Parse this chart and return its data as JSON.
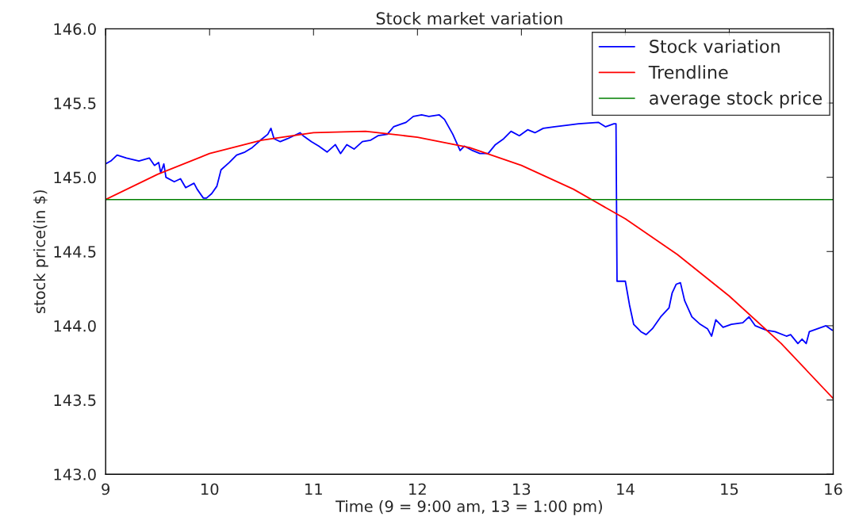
{
  "chart_data": {
    "type": "line",
    "title": "Stock market variation",
    "xlabel": "Time (9 = 9:00 am, 13 = 1:00 pm)",
    "ylabel": "stock price(in $)",
    "xlim": [
      9,
      16
    ],
    "xticks": [
      9,
      10,
      11,
      12,
      13,
      14,
      15,
      16
    ],
    "ylim": [
      143.0,
      146.0
    ],
    "yticks": [
      {
        "value": 143.0,
        "label": "143.0"
      },
      {
        "value": 143.5,
        "label": "143.5"
      },
      {
        "value": 144.0,
        "label": "144.0"
      },
      {
        "value": 144.5,
        "label": "144.5"
      },
      {
        "value": 145.0,
        "label": "145.0"
      },
      {
        "value": 145.5,
        "label": "145.5"
      },
      {
        "value": 146.0,
        "label": "146.0"
      }
    ],
    "grid": false,
    "legend": "top right",
    "series": [
      {
        "name": "Stock variation",
        "color": "#0000ff",
        "x": [
          9.0,
          9.05,
          9.11,
          9.2,
          9.32,
          9.42,
          9.47,
          9.51,
          9.53,
          9.56,
          9.58,
          9.66,
          9.72,
          9.77,
          9.85,
          9.88,
          9.94,
          9.97,
          10.02,
          10.07,
          10.11,
          10.19,
          10.26,
          10.34,
          10.41,
          10.49,
          10.56,
          10.59,
          10.62,
          10.68,
          10.75,
          10.81,
          10.87,
          10.9,
          10.98,
          11.05,
          11.13,
          11.21,
          11.26,
          11.32,
          11.39,
          11.47,
          11.55,
          11.62,
          11.71,
          11.77,
          11.89,
          11.96,
          12.04,
          12.11,
          12.21,
          12.26,
          12.34,
          12.41,
          12.45,
          12.53,
          12.6,
          12.68,
          12.75,
          12.83,
          12.9,
          12.98,
          13.06,
          13.13,
          13.21,
          13.32,
          13.43,
          13.55,
          13.74,
          13.81,
          13.89,
          13.91,
          13.92,
          13.95,
          14.0,
          14.04,
          14.08,
          14.15,
          14.2,
          14.26,
          14.34,
          14.42,
          14.45,
          14.49,
          14.53,
          14.57,
          14.64,
          14.72,
          14.79,
          14.83,
          14.87,
          14.94,
          15.02,
          15.13,
          15.19,
          15.25,
          15.32,
          15.36,
          15.44,
          15.55,
          15.59,
          15.66,
          15.7,
          15.74,
          15.77,
          15.85,
          15.93,
          15.99
        ],
        "values": [
          145.09,
          145.11,
          145.15,
          145.13,
          145.11,
          145.13,
          145.08,
          145.1,
          145.03,
          145.09,
          145.0,
          144.97,
          144.99,
          144.93,
          144.96,
          144.92,
          144.86,
          144.86,
          144.89,
          144.94,
          145.05,
          145.1,
          145.15,
          145.17,
          145.2,
          145.25,
          145.29,
          145.33,
          145.26,
          145.24,
          145.26,
          145.28,
          145.3,
          145.28,
          145.24,
          145.21,
          145.17,
          145.22,
          145.16,
          145.22,
          145.19,
          145.24,
          145.25,
          145.28,
          145.29,
          145.34,
          145.37,
          145.41,
          145.42,
          145.41,
          145.42,
          145.39,
          145.29,
          145.18,
          145.21,
          145.18,
          145.16,
          145.16,
          145.22,
          145.26,
          145.31,
          145.28,
          145.32,
          145.3,
          145.33,
          145.34,
          145.35,
          145.36,
          145.37,
          145.34,
          145.36,
          145.36,
          144.3,
          144.3,
          144.3,
          144.14,
          144.01,
          143.96,
          143.94,
          143.98,
          144.06,
          144.12,
          144.22,
          144.28,
          144.29,
          144.17,
          144.06,
          144.01,
          143.98,
          143.93,
          144.04,
          143.99,
          144.01,
          144.02,
          144.06,
          144.0,
          143.98,
          143.97,
          143.96,
          143.93,
          143.94,
          143.88,
          143.91,
          143.88,
          143.96,
          143.98,
          144.0,
          143.97
        ]
      },
      {
        "name": "Trendline",
        "color": "#ff0000",
        "x": [
          9,
          9.5,
          10,
          10.5,
          11,
          11.5,
          12,
          12.5,
          13,
          13.5,
          14,
          14.5,
          15,
          15.5,
          16
        ],
        "values": [
          144.85,
          145.02,
          145.16,
          145.25,
          145.3,
          145.31,
          145.27,
          145.2,
          145.08,
          144.92,
          144.72,
          144.48,
          144.2,
          143.88,
          143.51
        ]
      }
    ],
    "ref_lines": [
      {
        "axis": "y",
        "value": 144.85,
        "label": "average stock price",
        "color": "#008000",
        "line_style": "solid"
      }
    ]
  }
}
